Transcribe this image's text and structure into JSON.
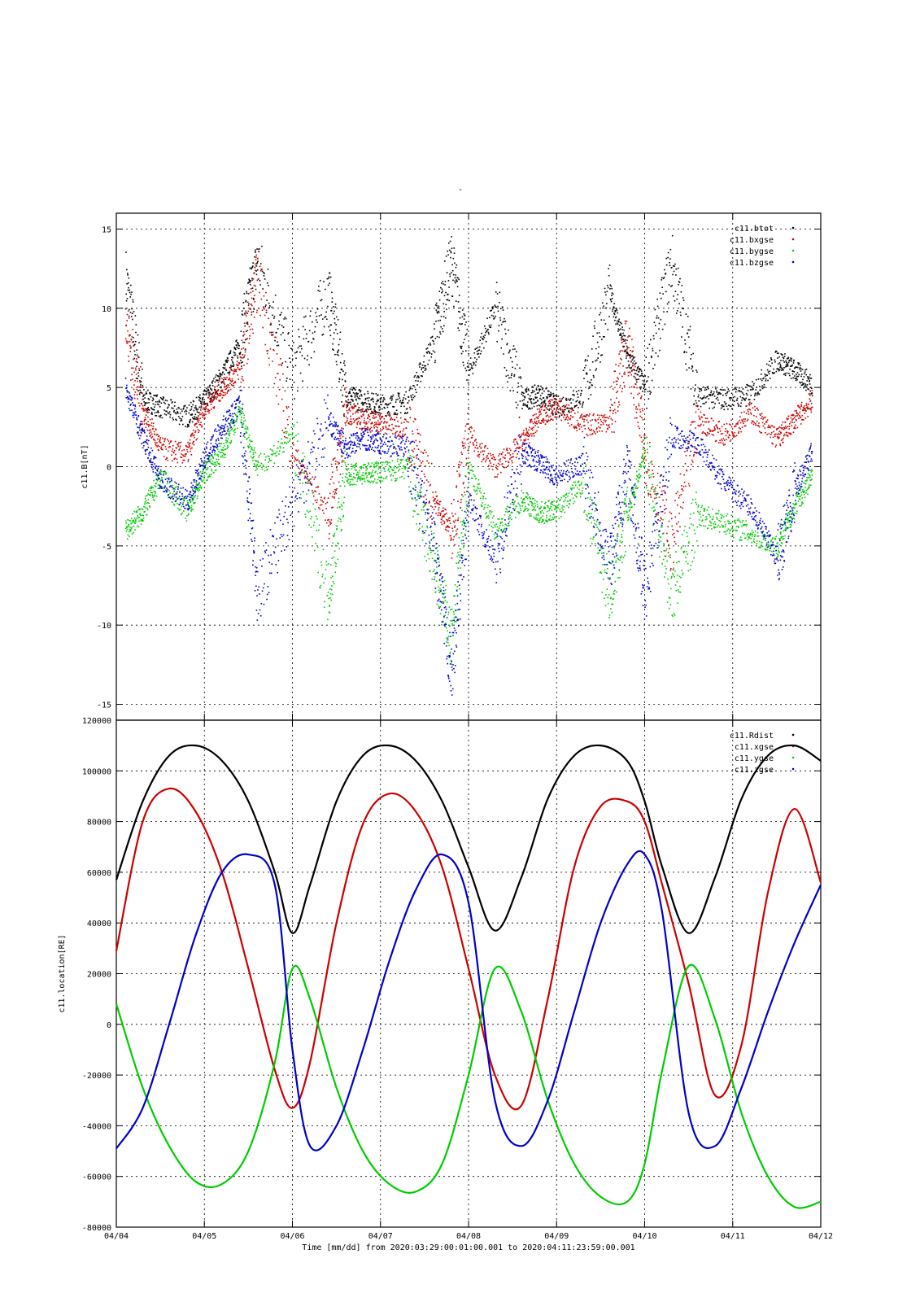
{
  "page": {
    "title": "-"
  },
  "chart_data": [
    {
      "type": "scatter",
      "title": "-",
      "ylabel": "c11.B[nT]",
      "xlabel": "",
      "ylim": [
        -16,
        16
      ],
      "yticks": [
        15,
        10,
        5,
        0,
        -5,
        -10,
        -15
      ],
      "xlim": [
        "04/04",
        "04/12"
      ],
      "xtick_labels": [
        "04/04",
        "04/05",
        "04/06",
        "04/07",
        "04/08",
        "04/09",
        "04/10",
        "04/11",
        "04/12"
      ],
      "grid": true,
      "legend_position": "top-right",
      "series": [
        {
          "name": "c11.btot",
          "color": "#000000"
        },
        {
          "name": "c11.bxgse",
          "color": "#cc0000"
        },
        {
          "name": "c11.bygse",
          "color": "#00cc00"
        },
        {
          "name": "c11.bzgse",
          "color": "#0000cc"
        }
      ],
      "x_days": [
        0.1,
        0.3,
        0.5,
        0.8,
        1.0,
        1.2,
        1.4,
        1.6,
        2.0,
        2.4,
        2.6,
        2.8,
        3.0,
        3.3,
        3.6,
        3.8,
        4.0,
        4.3,
        4.6,
        4.8,
        5.0,
        5.3,
        5.6,
        5.8,
        6.0,
        6.3,
        6.6,
        6.9,
        7.2,
        7.5,
        7.7,
        7.9
      ],
      "values": {
        "c11.btot": [
          12,
          4.3,
          3.8,
          3.2,
          4.2,
          5.8,
          7.8,
          13,
          6,
          11,
          4.5,
          4.2,
          3.9,
          4.1,
          8,
          13,
          6,
          10,
          4.2,
          4.6,
          3.8,
          4.5,
          11,
          7,
          5,
          13,
          4.5,
          4.3,
          4.6,
          6.8,
          6.1,
          5.2
        ],
        "c11.bxgse": [
          9,
          3.5,
          1.2,
          0.8,
          3.8,
          5.0,
          6.3,
          12,
          1,
          -3,
          3.5,
          3.0,
          2.8,
          2.5,
          -2,
          -4,
          2,
          0,
          1.5,
          3.2,
          3.8,
          2.6,
          3,
          8,
          1,
          -5,
          3.0,
          2.0,
          3.5,
          1.8,
          3.0,
          4.2
        ],
        "c11.bygse": [
          -4,
          -2.8,
          -0.6,
          -2.8,
          -0.3,
          1.0,
          3.5,
          0,
          2,
          -8,
          -0.5,
          -0.4,
          -0.3,
          -0.1,
          -6,
          -11,
          0,
          -4,
          -2.0,
          -2.9,
          -2.7,
          -1.0,
          -8,
          -3,
          1,
          -8,
          -3.0,
          -3.5,
          -4.2,
          -5.0,
          -2.5,
          -0.5
        ],
        "c11.bzgse": [
          5,
          1.8,
          -0.8,
          -2.2,
          0.6,
          2.5,
          4.0,
          -8,
          -2,
          3,
          1.2,
          1.8,
          1.5,
          1.2,
          -5,
          -13,
          -2,
          -6,
          1.0,
          0.3,
          -0.6,
          0.3,
          -6,
          0,
          -8,
          2,
          1.5,
          -1.0,
          -2.5,
          -5.8,
          -1.5,
          1.0
        ]
      }
    },
    {
      "type": "line",
      "title": "",
      "ylabel": "c11.location[RE]",
      "xlabel": "Time [mm/dd]  from 2020:03:29:00:01:00.001  to  2020:04:11:23:59:00.001",
      "ylim": [
        -80000,
        120000
      ],
      "yticks": [
        120000,
        100000,
        80000,
        60000,
        40000,
        20000,
        0,
        -20000,
        -40000,
        -60000,
        -80000
      ],
      "xlim": [
        "04/04",
        "04/12"
      ],
      "xtick_labels": [
        "04/04",
        "04/05",
        "04/06",
        "04/07",
        "04/08",
        "04/09",
        "04/10",
        "04/11",
        "04/12"
      ],
      "grid": true,
      "legend_position": "top-right",
      "x_days": [
        0.0,
        0.3,
        0.6,
        0.9,
        1.2,
        1.5,
        1.8,
        2.0,
        2.2,
        2.5,
        2.8,
        3.1,
        3.4,
        3.7,
        4.0,
        4.3,
        4.6,
        4.9,
        5.2,
        5.5,
        5.8,
        6.0,
        6.2,
        6.5,
        6.8,
        7.1,
        7.4,
        7.7,
        8.0
      ],
      "series": [
        {
          "name": "c11.Rdist",
          "color": "#000000",
          "values": [
            57000,
            88000,
            106000,
            110000,
            104000,
            88000,
            60000,
            36000,
            55000,
            88000,
            106000,
            110000,
            104000,
            88000,
            62000,
            37000,
            58000,
            89000,
            106000,
            110000,
            104000,
            88000,
            62000,
            36000,
            58000,
            89000,
            106000,
            110000,
            104000
          ]
        },
        {
          "name": "c11.xgse",
          "color": "#cc0000",
          "values": [
            29000,
            80000,
            93000,
            84000,
            60000,
            22000,
            -18000,
            -33000,
            -15000,
            40000,
            79000,
            91000,
            84000,
            62000,
            22000,
            -20000,
            -32000,
            10000,
            62000,
            86000,
            88000,
            80000,
            55000,
            16000,
            -28000,
            -8000,
            52000,
            85000,
            56000
          ]
        },
        {
          "name": "c11.ygse",
          "color": "#00cc00",
          "values": [
            8000,
            -25000,
            -48000,
            -62000,
            -63000,
            -50000,
            -15000,
            22000,
            10000,
            -25000,
            -50000,
            -63000,
            -66000,
            -55000,
            -20000,
            22000,
            5000,
            -30000,
            -55000,
            -68000,
            -70000,
            -55000,
            -18000,
            23000,
            2000,
            -35000,
            -60000,
            -72000,
            -70000
          ]
        },
        {
          "name": "c11.zgse",
          "color": "#0000cc",
          "values": [
            -49000,
            -33000,
            0,
            35000,
            60000,
            67000,
            55000,
            -10000,
            -48000,
            -40000,
            -10000,
            25000,
            53000,
            67000,
            48000,
            -30000,
            -48000,
            -30000,
            5000,
            40000,
            63000,
            67000,
            44000,
            -35000,
            -48000,
            -25000,
            5000,
            32000,
            55000
          ]
        }
      ]
    }
  ]
}
